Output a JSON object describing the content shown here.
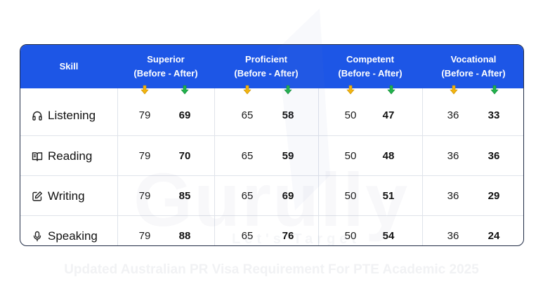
{
  "header": {
    "skill_label": "Skill",
    "levels": [
      {
        "name": "Superior",
        "sub": "(Before - After)"
      },
      {
        "name": "Proficient",
        "sub": "(Before - After)"
      },
      {
        "name": "Competent",
        "sub": "(Before - After)"
      },
      {
        "name": "Vocational",
        "sub": "(Before - After)"
      }
    ]
  },
  "rows": [
    {
      "skill": "Listening",
      "icon": "headphones-icon",
      "values": [
        [
          "79",
          "69"
        ],
        [
          "65",
          "58"
        ],
        [
          "50",
          "47"
        ],
        [
          "36",
          "33"
        ]
      ]
    },
    {
      "skill": "Reading",
      "icon": "book-icon",
      "values": [
        [
          "79",
          "70"
        ],
        [
          "65",
          "59"
        ],
        [
          "50",
          "48"
        ],
        [
          "36",
          "36"
        ]
      ]
    },
    {
      "skill": "Writing",
      "icon": "pencil-icon",
      "values": [
        [
          "79",
          "85"
        ],
        [
          "65",
          "69"
        ],
        [
          "50",
          "51"
        ],
        [
          "36",
          "29"
        ]
      ]
    },
    {
      "skill": "Speaking",
      "icon": "microphone-icon",
      "values": [
        [
          "79",
          "88"
        ],
        [
          "65",
          "76"
        ],
        [
          "50",
          "54"
        ],
        [
          "36",
          "24"
        ]
      ]
    }
  ],
  "watermark": {
    "brand": "Gurully",
    "tagline": "Let's Target"
  },
  "caption": "Updated Australian PR Visa Requirement For PTE Academic 2025",
  "colors": {
    "header_bg": "#1d56e6",
    "before_arrow": "#f2b50f",
    "after_arrow": "#22b24c",
    "border": "#1f2a44",
    "grid": "#dfe3ea"
  }
}
